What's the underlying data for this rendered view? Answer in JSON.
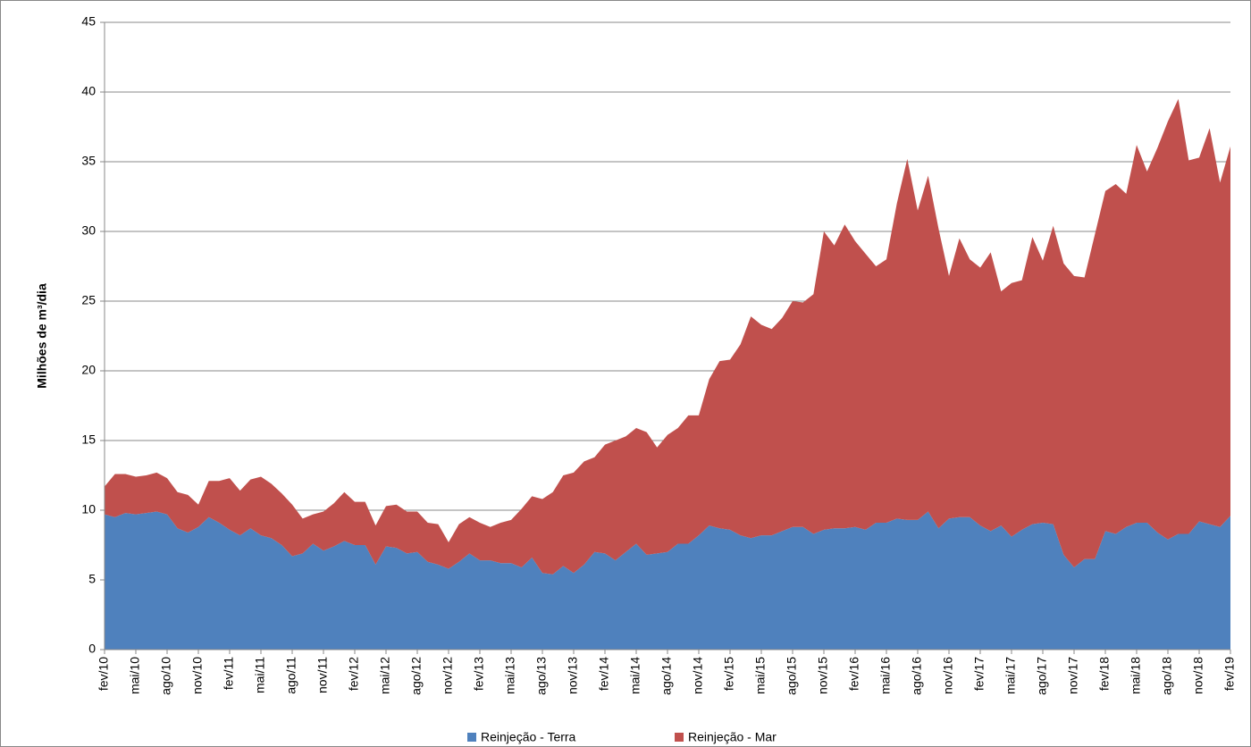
{
  "chart_data": {
    "type": "stacked_area",
    "y_label": "Milhões de m³/dia",
    "categories": [
      "fev/10",
      null,
      null,
      "mai/10",
      null,
      null,
      "ago/10",
      null,
      null,
      "nov/10",
      null,
      null,
      "fev/11",
      null,
      null,
      "mai/11",
      null,
      null,
      "ago/11",
      null,
      null,
      "nov/11",
      null,
      null,
      "fev/12",
      null,
      null,
      "mai/12",
      null,
      null,
      "ago/12",
      null,
      null,
      "nov/12",
      null,
      null,
      "fev/13",
      null,
      null,
      "mai/13",
      null,
      null,
      "ago/13",
      null,
      null,
      "nov/13",
      null,
      null,
      "fev/14",
      null,
      null,
      "mai/14",
      null,
      null,
      "ago/14",
      null,
      null,
      "nov/14",
      null,
      null,
      "fev/15",
      null,
      null,
      "mai/15",
      null,
      null,
      "ago/15",
      null,
      null,
      "nov/15",
      null,
      null,
      "fev/16",
      null,
      null,
      "mai/16",
      null,
      null,
      "ago/16",
      null,
      null,
      "nov/16",
      null,
      null,
      "fev/17",
      null,
      null,
      "mai/17",
      null,
      null,
      "ago/17",
      null,
      null,
      "nov/17",
      null,
      null,
      "fev/18",
      null,
      null,
      "mai/18",
      null,
      null,
      "ago/18",
      null,
      null,
      "nov/18",
      null,
      null,
      "fev/19"
    ],
    "series": [
      {
        "name": "Reinjeção - Terra",
        "color": "#4f81bd",
        "values": [
          9.7,
          9.5,
          9.8,
          9.7,
          9.8,
          9.9,
          9.7,
          8.7,
          8.4,
          8.8,
          9.5,
          9.1,
          8.6,
          8.2,
          8.7,
          8.2,
          8.0,
          7.5,
          6.7,
          6.9,
          7.6,
          7.1,
          7.4,
          7.8,
          7.5,
          7.5,
          6.1,
          7.4,
          7.3,
          6.9,
          7.0,
          6.3,
          6.1,
          5.8,
          6.3,
          6.9,
          6.4,
          6.4,
          6.2,
          6.2,
          5.9,
          6.6,
          5.5,
          5.4,
          6.0,
          5.5,
          6.1,
          7.0,
          6.9,
          6.4,
          7.0,
          7.6,
          6.8,
          6.9,
          7.0,
          7.6,
          7.6,
          8.2,
          8.9,
          8.7,
          8.6,
          8.2,
          8.0,
          8.2,
          8.2,
          8.5,
          8.8,
          8.8,
          8.3,
          8.6,
          8.7,
          8.7,
          8.8,
          8.6,
          9.1,
          9.1,
          9.4,
          9.3,
          9.3,
          9.9,
          8.7,
          9.4,
          9.5,
          9.5,
          8.9,
          8.5,
          8.9,
          8.1,
          8.6,
          9.0,
          9.1,
          9.0,
          6.8,
          5.9,
          6.5,
          6.5,
          8.5,
          8.3,
          8.8,
          9.1,
          9.1,
          8.4,
          7.9,
          8.3,
          8.3,
          9.2,
          9.0,
          8.8,
          9.6
        ]
      },
      {
        "name": "Reinjeção - Mar",
        "color": "#c0504d",
        "values": [
          2.0,
          3.1,
          2.8,
          2.7,
          2.7,
          2.8,
          2.6,
          2.6,
          2.7,
          1.6,
          2.6,
          3.0,
          3.7,
          3.2,
          3.5,
          4.2,
          3.9,
          3.7,
          3.7,
          2.5,
          2.1,
          2.8,
          3.1,
          3.5,
          3.1,
          3.1,
          2.8,
          2.9,
          3.1,
          3.0,
          2.9,
          2.8,
          2.9,
          1.9,
          2.7,
          2.6,
          2.7,
          2.4,
          2.9,
          3.1,
          4.2,
          4.4,
          5.3,
          5.9,
          6.5,
          7.2,
          7.4,
          6.8,
          7.8,
          8.6,
          8.3,
          8.3,
          8.8,
          7.6,
          8.4,
          8.3,
          9.2,
          8.6,
          10.5,
          12.0,
          12.2,
          13.7,
          15.9,
          15.1,
          14.8,
          15.3,
          16.2,
          16.1,
          17.2,
          21.4,
          20.3,
          21.8,
          20.5,
          19.8,
          18.4,
          18.9,
          22.6,
          25.9,
          22.2,
          24.1,
          21.5,
          17.4,
          20.0,
          18.5,
          18.5,
          20.0,
          16.8,
          18.2,
          17.9,
          20.6,
          18.8,
          21.4,
          20.9,
          20.9,
          20.2,
          23.3,
          24.4,
          25.1,
          23.9,
          27.1,
          25.2,
          27.6,
          30.0,
          31.2,
          26.8,
          26.1,
          28.4,
          24.7,
          26.5
        ]
      }
    ],
    "ylim": [
      0,
      45
    ],
    "yticks": [
      0,
      5,
      10,
      15,
      20,
      25,
      30,
      35,
      40,
      45
    ],
    "grid": true,
    "legend": "bottom"
  }
}
